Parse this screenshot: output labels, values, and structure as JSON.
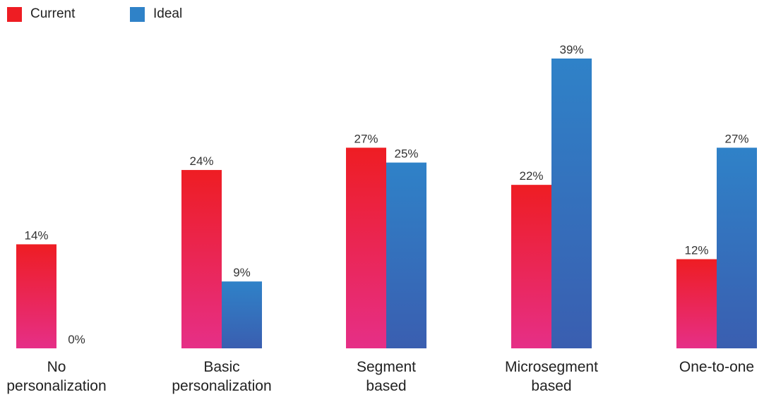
{
  "chart_data": {
    "type": "bar",
    "title": "",
    "xlabel": "",
    "ylabel": "",
    "ylim": [
      0,
      39
    ],
    "grid": false,
    "legend_position": "top-left",
    "categories": [
      [
        "No",
        "personalization"
      ],
      [
        "Basic",
        "personalization"
      ],
      [
        "Segment",
        "based"
      ],
      [
        "Microsegment",
        "based"
      ],
      [
        "One-to-one"
      ]
    ],
    "series": [
      {
        "name": "Current",
        "color": "#ee1d23",
        "gradient_to": "#e62f87",
        "values": [
          14,
          24,
          27,
          22,
          12
        ],
        "labels": [
          "14%",
          "24%",
          "27%",
          "22%",
          "12%"
        ]
      },
      {
        "name": "Ideal",
        "color": "#2f82c8",
        "gradient_to": "#3a5eb0",
        "values": [
          0,
          9,
          25,
          39,
          27
        ],
        "labels": [
          "0%",
          "9%",
          "25%",
          "39%",
          "27%"
        ]
      }
    ]
  }
}
